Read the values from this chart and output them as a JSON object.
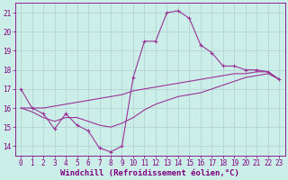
{
  "xlabel": "Windchill (Refroidissement éolien,°C)",
  "xlim": [
    -0.5,
    23.5
  ],
  "ylim": [
    13.5,
    21.5
  ],
  "xticks": [
    0,
    1,
    2,
    3,
    4,
    5,
    6,
    7,
    8,
    9,
    10,
    11,
    12,
    13,
    14,
    15,
    16,
    17,
    18,
    19,
    20,
    21,
    22,
    23
  ],
  "yticks": [
    14,
    15,
    16,
    17,
    18,
    19,
    20,
    21
  ],
  "bg_color": "#cceee8",
  "grid_color": "#b8d8d8",
  "line_color": "#993399",
  "line1_x": [
    0,
    1,
    2,
    3,
    4,
    5,
    6,
    7,
    8,
    9,
    10,
    11,
    12,
    13,
    14,
    15,
    16,
    17,
    18,
    19,
    20,
    21,
    22,
    23
  ],
  "line1_y": [
    17.0,
    16.0,
    15.7,
    14.9,
    15.7,
    15.1,
    14.8,
    13.9,
    13.7,
    14.0,
    17.6,
    19.5,
    19.5,
    21.0,
    21.1,
    20.7,
    19.3,
    18.9,
    18.2,
    18.2,
    18.0,
    18.0,
    17.9,
    17.5
  ],
  "line2_x": [
    0,
    1,
    2,
    3,
    4,
    5,
    6,
    7,
    8,
    9,
    10,
    11,
    12,
    13,
    14,
    15,
    16,
    17,
    18,
    19,
    20,
    21,
    22,
    23
  ],
  "line2_y": [
    16.0,
    16.0,
    16.0,
    16.1,
    16.2,
    16.3,
    16.4,
    16.5,
    16.6,
    16.7,
    16.9,
    17.0,
    17.1,
    17.2,
    17.3,
    17.4,
    17.5,
    17.6,
    17.7,
    17.8,
    17.8,
    17.9,
    17.9,
    17.5
  ],
  "line3_x": [
    0,
    1,
    2,
    3,
    4,
    5,
    6,
    7,
    8,
    9,
    10,
    11,
    12,
    13,
    14,
    15,
    16,
    17,
    18,
    19,
    20,
    21,
    22,
    23
  ],
  "line3_y": [
    16.0,
    15.8,
    15.5,
    15.3,
    15.5,
    15.5,
    15.3,
    15.1,
    15.0,
    15.2,
    15.5,
    15.9,
    16.2,
    16.4,
    16.6,
    16.7,
    16.8,
    17.0,
    17.2,
    17.4,
    17.6,
    17.7,
    17.8,
    17.5
  ],
  "font_color": "#800080",
  "tick_font_size": 5.5,
  "xlabel_font_size": 6.5
}
